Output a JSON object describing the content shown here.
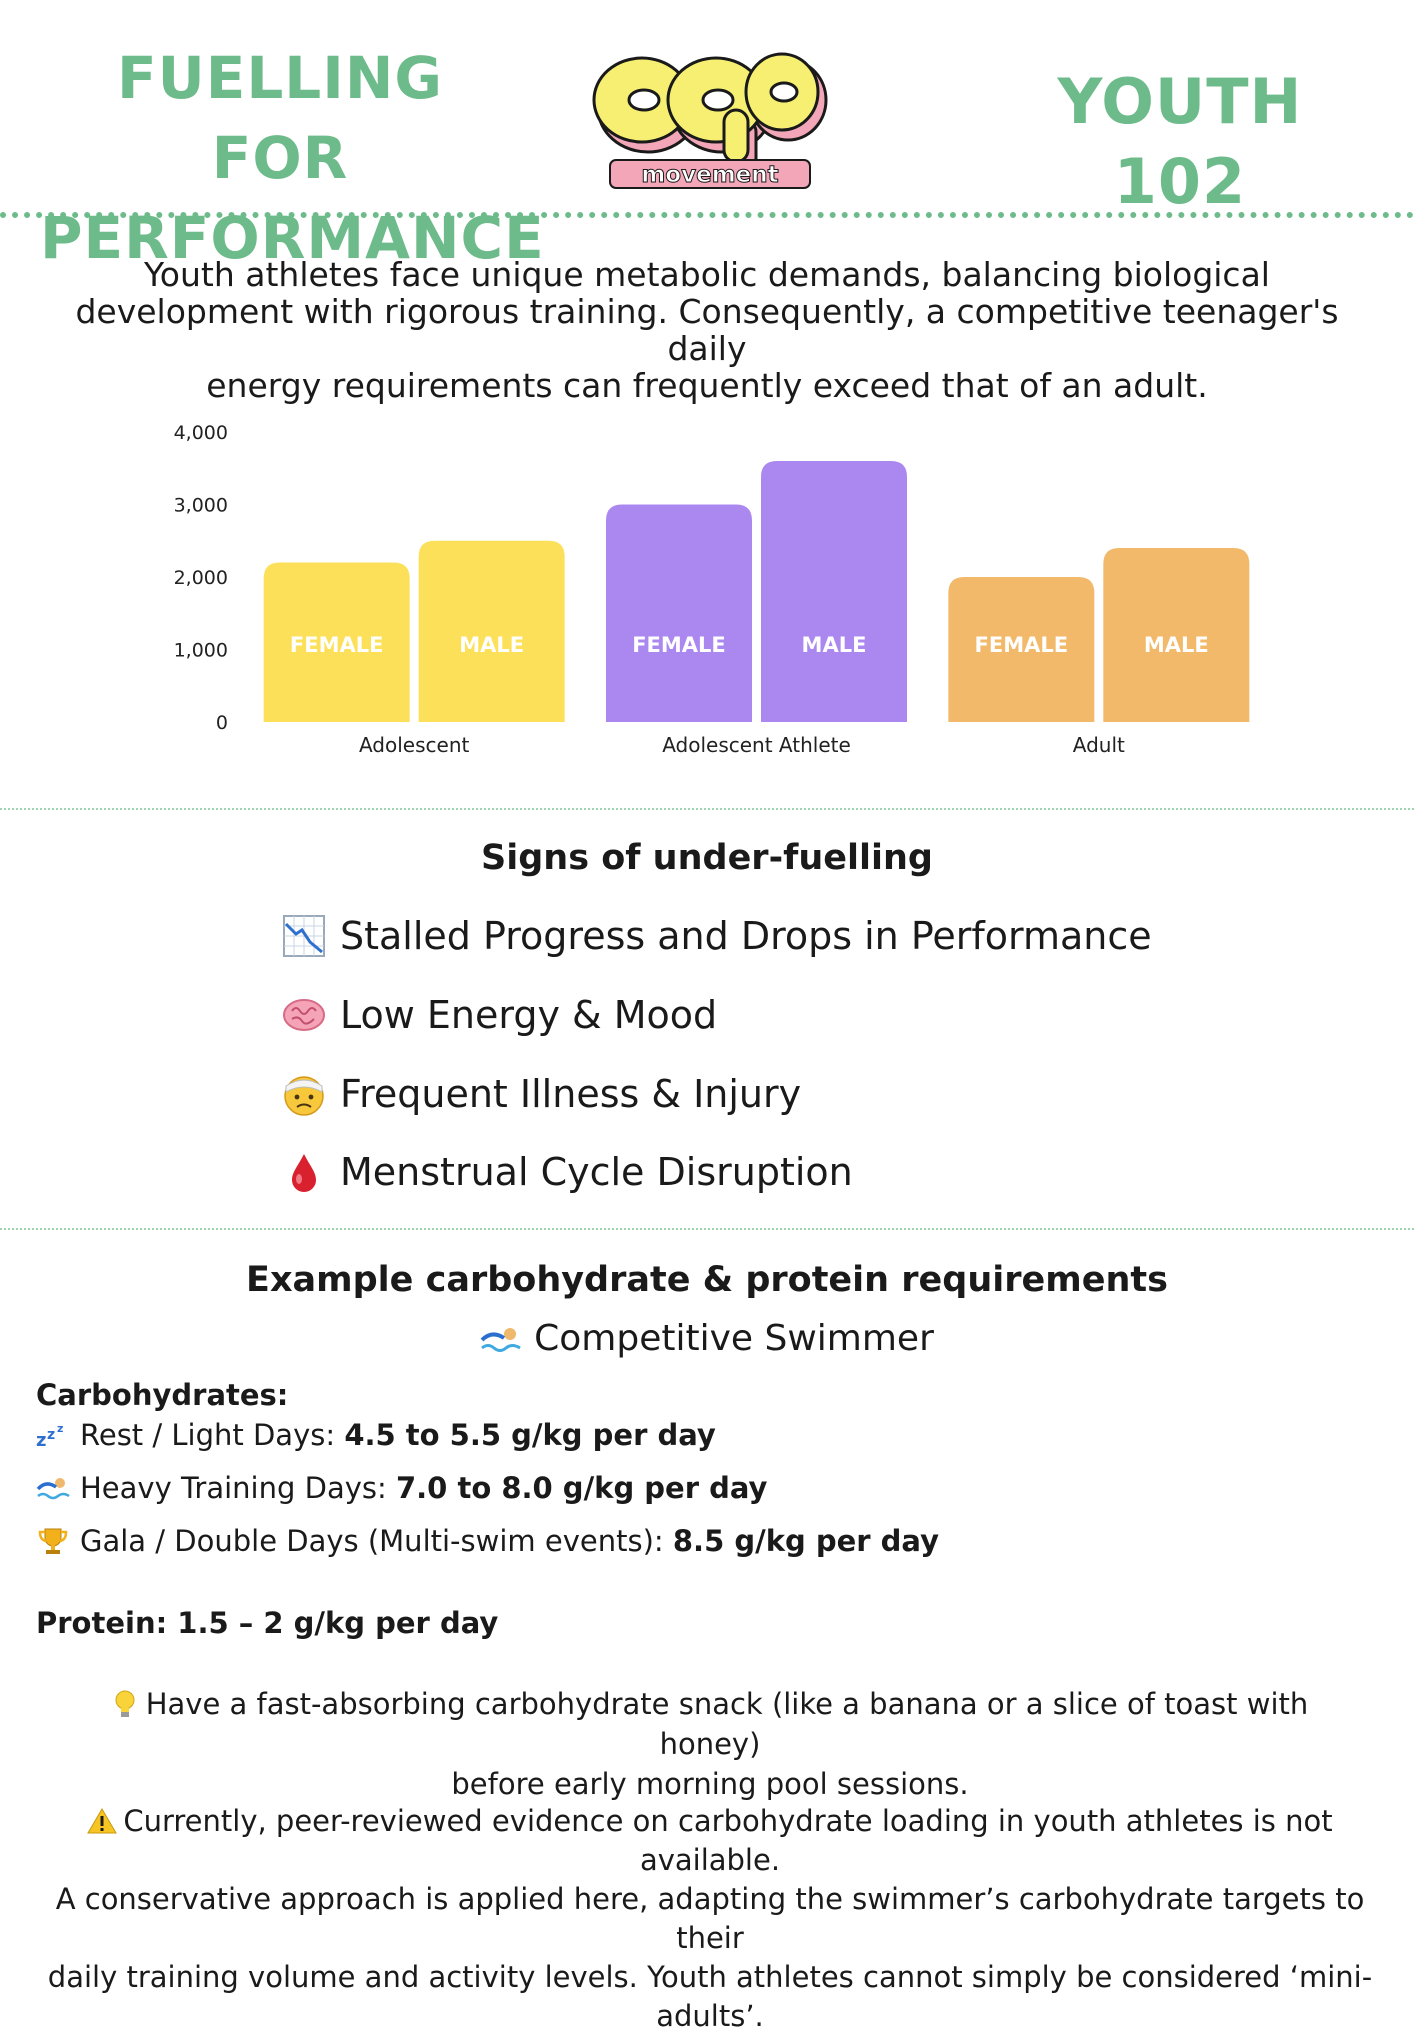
{
  "header": {
    "title_line1": "FUELLING FOR",
    "title_line2": "PERFORMANCE",
    "logo_word": "movement",
    "series_label": "YOUTH 102",
    "brand_color": "#6dbb8a"
  },
  "intro": {
    "line1": "Youth athletes face unique metabolic demands, balancing biological",
    "line2": "development with rigorous training. Consequently, a competitive teenager's daily",
    "line3": "energy requirements can frequently exceed that of an adult."
  },
  "chart_data": {
    "type": "bar",
    "categories": [
      "Adolescent",
      "Adolescent Athlete",
      "Adult"
    ],
    "series": [
      {
        "name": "FEMALE",
        "values": [
          2200,
          3000,
          2000
        ]
      },
      {
        "name": "MALE",
        "values": [
          2500,
          3600,
          2400
        ]
      }
    ],
    "ylim": [
      0,
      4000
    ],
    "yticks": [
      "0",
      "1,000",
      "2,000",
      "3,000",
      "4,000"
    ],
    "grid": false,
    "bar_labels_inside": true,
    "colors": [
      "#fde05a",
      "#ab88f0",
      "#f2b96a"
    ]
  },
  "signs": {
    "heading": "Signs of under-fuelling",
    "items": [
      {
        "icon": "chart-decreasing-icon",
        "label": "Stalled Progress and Drops in Performance"
      },
      {
        "icon": "brain-icon",
        "label": "Low Energy & Mood"
      },
      {
        "icon": "bandaged-face-icon",
        "label": "Frequent Illness & Injury"
      },
      {
        "icon": "blood-drop-icon",
        "label": "Menstrual Cycle Disruption"
      }
    ]
  },
  "requirements": {
    "heading": "Example carbohydrate & protein requirements",
    "subject": "Competitive Swimmer",
    "carbs_title": "Carbohydrates:",
    "carbs": [
      {
        "icon": "zzz-icon",
        "label": "Rest / Light Days: ",
        "value": "4.5 to 5.5 g/kg per day"
      },
      {
        "icon": "swimmer-icon",
        "label": "Heavy Training Days: ",
        "value": "7.0 to 8.0 g/kg per day"
      },
      {
        "icon": "trophy-icon",
        "label": "Gala / Double Days (Multi-swim events): ",
        "value": "8.5 g/kg per day"
      }
    ],
    "protein": "Protein: 1.5 – 2 g/kg per day",
    "tip_line1": "Have a fast-absorbing carbohydrate snack (like a banana or a slice of toast with honey)",
    "tip_line2": "before early morning pool sessions.",
    "warning_line1": "Currently, peer-reviewed evidence on carbohydrate loading in youth athletes is not available.",
    "warning_line2": "A conservative approach is applied here, adapting the swimmer’s carbohydrate targets to their",
    "warning_line3": "daily training volume and activity levels. Youth athletes cannot simply be considered ‘mini-adults’."
  }
}
